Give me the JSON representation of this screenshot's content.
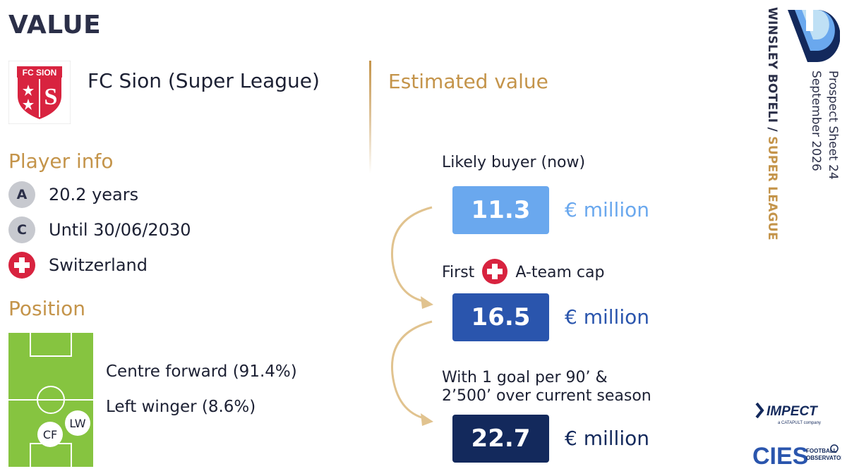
{
  "page": {
    "title": "VALUE"
  },
  "club": {
    "name": "FC Sion (Super League)",
    "logo_text": "FC SION",
    "logo_letter": "S"
  },
  "player_info": {
    "heading": "Player info",
    "age_badge": "A",
    "age": "20.2 years",
    "contract_badge": "C",
    "contract": "Until 30/06/2030",
    "nationality": "Switzerland"
  },
  "position": {
    "heading": "Position",
    "primary": "Centre forward (91.4%)",
    "secondary": "Left winger (8.6%)",
    "marker_cf": "CF",
    "marker_lw": "LW"
  },
  "estimated": {
    "heading": "Estimated value",
    "scenarios": [
      {
        "label": "Likely buyer (now)",
        "value": "11.3",
        "unit": "€ million",
        "color": "#6aa8ee",
        "unit_color": "#6aa8ee"
      },
      {
        "label_before": "First",
        "label_after": "A-team cap",
        "value": "16.5",
        "unit": "€ million",
        "color": "#2a55ad",
        "unit_color": "#2a55ad"
      },
      {
        "label_line1": "With 1 goal per 90’ &",
        "label_line2": "2’500’ over current season",
        "value": "22.7",
        "unit": "€ million",
        "color": "#13295c",
        "unit_color": "#13295c"
      }
    ]
  },
  "sidebar": {
    "player_name": "WINSLEY BOTELI / ",
    "league": "SUPER LEAGUE",
    "sheet": "Prospect Sheet 24",
    "date": "September 2026"
  },
  "brands": {
    "impect": "IMPECT",
    "impect_sub": "a CATAPULT company",
    "cies": "CIES",
    "cies_sub1": "FOOTBALL",
    "cies_sub2": "OBSERVATORY"
  },
  "colors": {
    "accent_gold": "#c4944a",
    "navy": "#2b2f48",
    "pitch_green": "#86c440",
    "swiss_red": "#d8233f"
  }
}
